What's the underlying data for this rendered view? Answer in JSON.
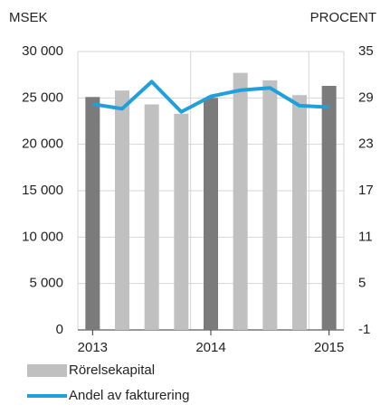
{
  "chart_data": {
    "type": "bar-line",
    "y_label": "MSEK",
    "y2_label": "PROCENT",
    "categories": [
      "2013",
      null,
      null,
      null,
      "2014",
      null,
      null,
      null,
      "2015"
    ],
    "series": [
      {
        "name": "Rörelsekapital",
        "type": "bar",
        "color": "#c0c0c0",
        "colors": [
          "#7b7b7b",
          "#c0c0c0",
          "#c0c0c0",
          "#c0c0c0",
          "#7b7b7b",
          "#c0c0c0",
          "#c0c0c0",
          "#c0c0c0",
          "#7b7b7b"
        ],
        "values": [
          25100,
          25800,
          24300,
          23300,
          25000,
          27700,
          26900,
          25300,
          26300
        ]
      },
      {
        "name": "Andel av fakturering",
        "type": "line",
        "axis": "y2",
        "color": "#1fa0dc",
        "values": [
          28.2,
          27.6,
          31.1,
          27.2,
          29.2,
          30.0,
          30.3,
          28.0,
          27.8
        ]
      }
    ],
    "ylim": [
      0,
      30000
    ],
    "yticks": [
      {
        "value": 0,
        "label": "0"
      },
      {
        "value": 5000,
        "label": "5 000"
      },
      {
        "value": 10000,
        "label": "10 000"
      },
      {
        "value": 15000,
        "label": "15 000"
      },
      {
        "value": 20000,
        "label": "20 000"
      },
      {
        "value": 25000,
        "label": "25 000"
      },
      {
        "value": 30000,
        "label": "30 000"
      }
    ],
    "y2lim": [
      -1,
      35
    ],
    "y2ticks": [
      -1,
      5,
      11,
      17,
      23,
      29,
      35
    ],
    "grid": true
  }
}
